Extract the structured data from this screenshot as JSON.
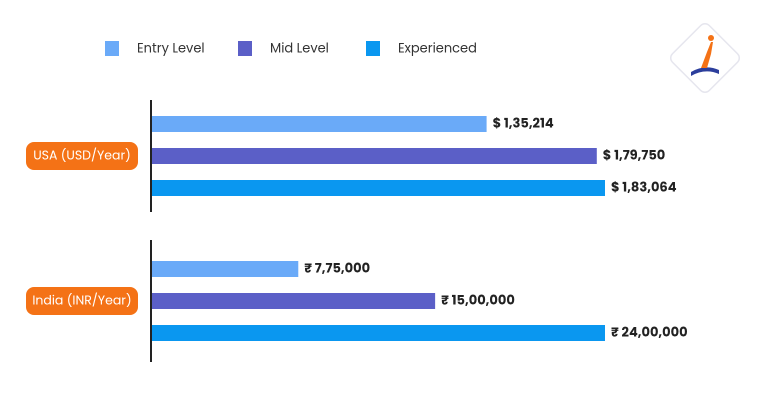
{
  "chart_data": {
    "type": "bar",
    "orientation": "horizontal",
    "categories": [
      "USA (USD/Year)",
      "India (INR/Year)"
    ],
    "series": [
      {
        "name": "Entry Level",
        "color": "#6aaaf8",
        "values": [
          135214,
          775000
        ],
        "value_labels": [
          "$ 1,35,214",
          "₹ 7,75,000"
        ]
      },
      {
        "name": "Mid Level",
        "color": "#5b5fc7",
        "values": [
          179750,
          1500000
        ],
        "value_labels": [
          "$ 1,79,750",
          "₹ 15,00,000"
        ]
      },
      {
        "name": "Experienced",
        "color": "#0a97f0",
        "values": [
          183064,
          2400000
        ],
        "value_labels": [
          "$ 1,83,064",
          "₹ 24,00,000"
        ]
      }
    ]
  }
}
